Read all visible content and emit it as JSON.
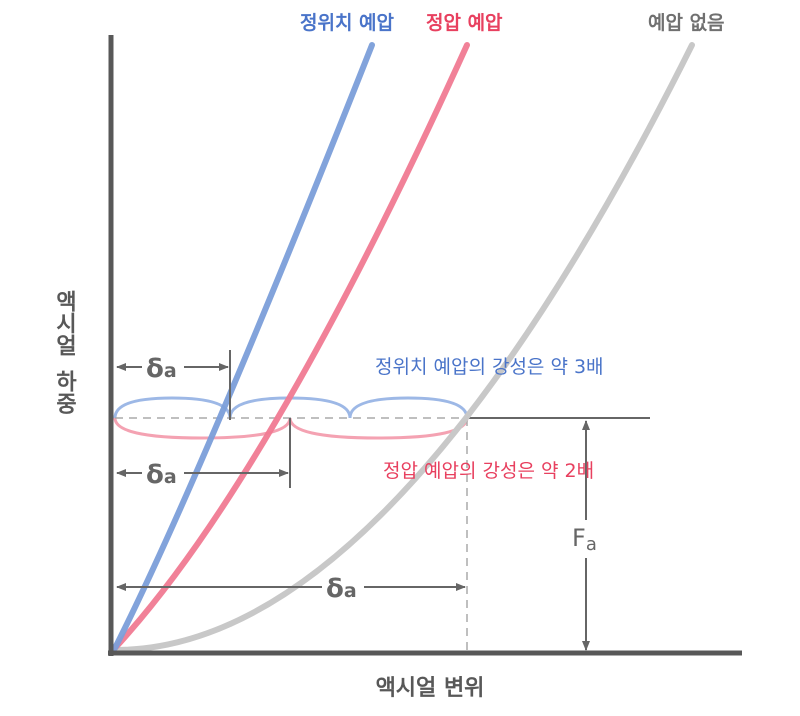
{
  "curves": {
    "fixed_position": {
      "label": "정위치 예압",
      "color": "#7b9ed9",
      "text_color": "#4a74c9"
    },
    "constant_pressure": {
      "label": "정압 예압",
      "color": "#f07a92",
      "text_color": "#e8405f"
    },
    "none": {
      "label": "예압 없음",
      "color": "#c8c8c8",
      "text_color": "#707070"
    }
  },
  "annotations": {
    "fixed_stiffness": "정위치 예압의 강성은 약 3배",
    "pressure_stiffness": "정압 예압의 강성은 약 2배",
    "delta_symbol": "δ",
    "delta_sub": "a",
    "force_symbol": "F",
    "force_sub": "a"
  },
  "axes": {
    "y_label_line1": "액시얼",
    "y_label_line2": "하중",
    "x_label": "액시얼 변위",
    "color": "#585858"
  }
}
